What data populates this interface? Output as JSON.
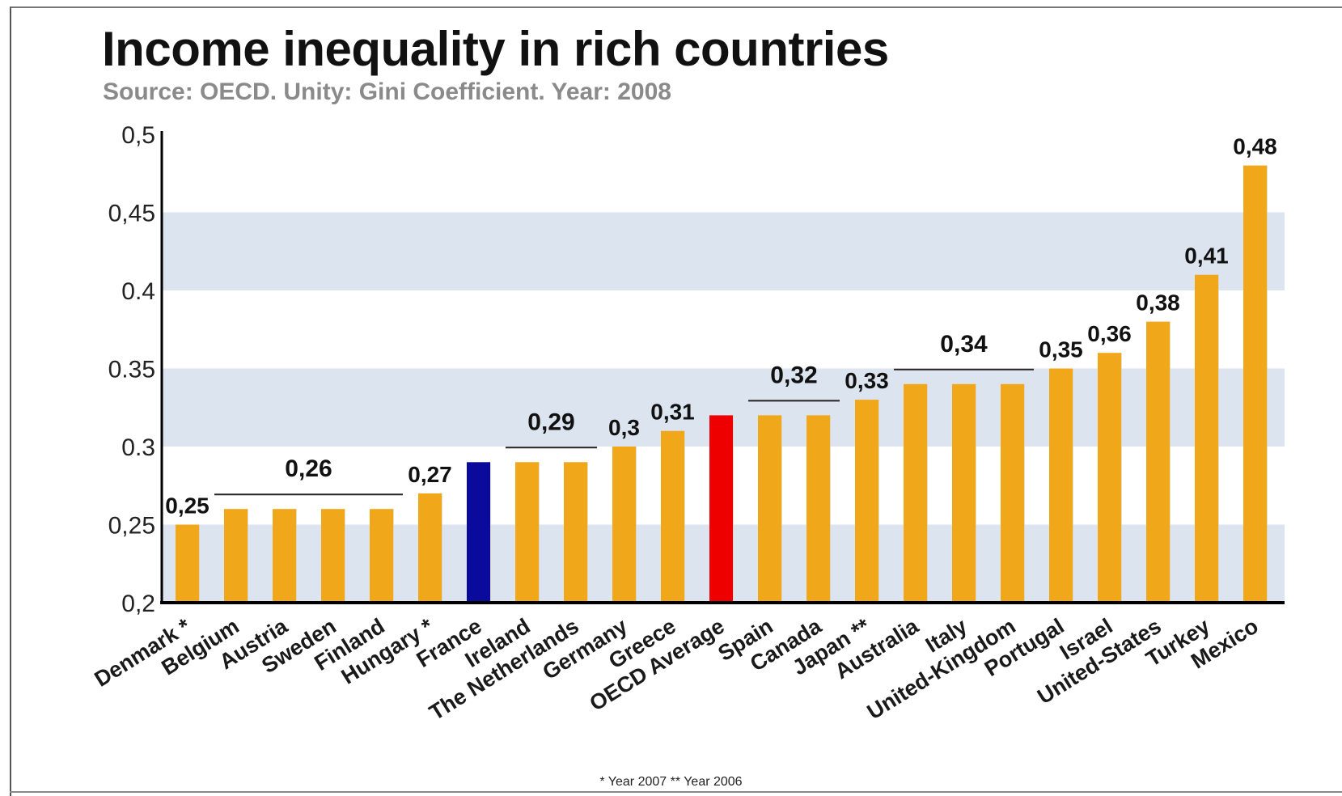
{
  "title": "Income inequality in rich countries",
  "subtitle": "Source: OECD. Unity: Gini Coefficient. Year: 2008",
  "footnote": "* Year 2007  ** Year 2006",
  "colors": {
    "bar_default": "#f0a719",
    "bar_highlight_france": "#0a0a9c",
    "bar_highlight_average": "#ee0000",
    "band": "#dce5ef",
    "axis": "#000000"
  },
  "chart_data": {
    "type": "bar",
    "title": "Income inequality in rich countries",
    "subtitle": "Source: OECD. Unity: Gini Coefficient. Year: 2008",
    "xlabel": "",
    "ylabel": "",
    "ylim": [
      0.2,
      0.5
    ],
    "yticks": [
      0.2,
      0.25,
      0.3,
      0.35,
      0.4,
      0.45,
      0.5
    ],
    "ytick_labels": [
      "0,2",
      "0,25",
      "0.3",
      "0.35",
      "0.4",
      "0,45",
      "0,5"
    ],
    "grid": "alternating horizontal bands",
    "categories": [
      "Denmark *",
      "Belgium",
      "Austria",
      "Sweden",
      "Finland",
      "Hungary *",
      "France",
      "Ireland",
      "The Netherlands",
      "Germany",
      "Greece",
      "OECD Average",
      "Spain",
      "Canada",
      "Japan **",
      "Australia",
      "Italy",
      "United-Kingdom",
      "Portugal",
      "Israel",
      "United-States",
      "Turkey",
      "Mexico"
    ],
    "values": [
      0.25,
      0.26,
      0.26,
      0.26,
      0.26,
      0.27,
      0.29,
      0.29,
      0.29,
      0.3,
      0.31,
      0.32,
      0.32,
      0.32,
      0.33,
      0.34,
      0.34,
      0.34,
      0.35,
      0.36,
      0.38,
      0.41,
      0.48
    ],
    "highlight": {
      "France": "#0a0a9c",
      "OECD Average": "#ee0000"
    },
    "data_labels": [
      {
        "text": "0,25",
        "from": 0,
        "to": 0
      },
      {
        "text": "0,26",
        "from": 1,
        "to": 4
      },
      {
        "text": "0,27",
        "from": 5,
        "to": 5
      },
      {
        "text": "0,29",
        "from": 7,
        "to": 8
      },
      {
        "text": "0,3",
        "from": 9,
        "to": 9
      },
      {
        "text": "0,31",
        "from": 10,
        "to": 10
      },
      {
        "text": "0,32",
        "from": 12,
        "to": 13
      },
      {
        "text": "0,33",
        "from": 14,
        "to": 14
      },
      {
        "text": "0,34",
        "from": 15,
        "to": 17
      },
      {
        "text": "0,35",
        "from": 18,
        "to": 18
      },
      {
        "text": "0,36",
        "from": 19,
        "to": 19
      },
      {
        "text": "0,38",
        "from": 20,
        "to": 20
      },
      {
        "text": "0,41",
        "from": 21,
        "to": 21
      },
      {
        "text": "0,48",
        "from": 22,
        "to": 22
      }
    ],
    "footnote": "* Year 2007  ** Year 2006"
  }
}
